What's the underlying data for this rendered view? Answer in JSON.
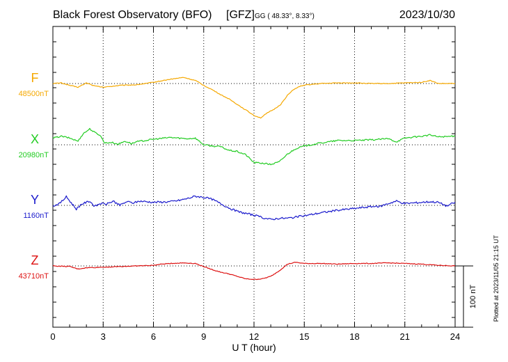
{
  "header": {
    "title": "Black Forest Observatory (BFO)",
    "agency": "[GFZ]",
    "coords": "GG ( 48.33°,   8.33°)",
    "date": "2023/10/30"
  },
  "side_note": "Plotted at 2023/11/05 21:15 UT",
  "scale_bar": {
    "label": "100 nT",
    "value": 100,
    "unit": "nT"
  },
  "chart_data": {
    "type": "line",
    "xlabel": "U T (hour)",
    "xlim": [
      0,
      24
    ],
    "x_ticks": [
      "0",
      "3",
      "6",
      "9",
      "12",
      "15",
      "18",
      "21",
      "24"
    ],
    "grid": true,
    "series": [
      {
        "name": "F",
        "baseline_label": "48500nT",
        "baseline": 48500,
        "color": "#f5a800",
        "x": [
          0,
          0.5,
          1,
          1.5,
          2,
          2.5,
          3,
          4,
          5,
          6,
          7,
          7.8,
          8.5,
          9,
          9.5,
          10,
          10.5,
          11,
          11.5,
          12,
          12.4,
          12.8,
          13.2,
          13.6,
          14,
          14.4,
          14.8,
          15.2,
          16,
          17,
          18,
          19,
          20,
          21,
          22,
          22.5,
          23,
          24
        ],
        "values": [
          48500,
          48501,
          48497,
          48494,
          48501,
          48496,
          48494,
          48497,
          48498,
          48502,
          48507,
          48510,
          48505,
          48497,
          48490,
          48482,
          48475,
          48466,
          48457,
          48448,
          48444,
          48452,
          48458,
          48466,
          48481,
          48491,
          48496,
          48498,
          48500,
          48501,
          48501,
          48500,
          48500,
          48501,
          48502,
          48505,
          48500,
          48500
        ]
      },
      {
        "name": "X",
        "baseline_label": "20980nT",
        "baseline": 20980,
        "color": "#22cc22",
        "x": [
          0,
          0.5,
          1,
          1.5,
          1.8,
          2.2,
          2.5,
          2.8,
          3.1,
          3.5,
          3.9,
          4.3,
          4.7,
          5,
          6,
          7,
          8,
          8.5,
          9,
          9.5,
          10,
          10.5,
          11,
          11.5,
          12,
          12.5,
          13,
          13.5,
          14,
          14.5,
          15,
          16,
          17,
          18,
          19,
          20,
          20.5,
          21,
          22,
          22.5,
          23,
          24
        ],
        "values": [
          20991,
          20994,
          20991,
          20986,
          20998,
          21006,
          21000,
          20996,
          20983,
          20984,
          20981,
          20986,
          20982,
          20985,
          20989,
          20992,
          20990,
          20991,
          20980,
          20978,
          20977,
          20971,
          20969,
          20964,
          20951,
          20950,
          20948,
          20952,
          20965,
          20974,
          20978,
          20983,
          20987,
          20987,
          20988,
          20990,
          20985,
          20991,
          20994,
          20996,
          20993,
          20994
        ]
      },
      {
        "name": "Y",
        "baseline_label": "1160nT",
        "baseline": 1160,
        "color": "#1a1acc",
        "x": [
          0,
          0.4,
          0.8,
          1.1,
          1.4,
          1.7,
          2.2,
          2.5,
          2.8,
          3.2,
          3.6,
          4,
          4.4,
          4.8,
          5.2,
          6,
          7,
          7.5,
          8,
          8.5,
          9,
          9.5,
          10,
          10.5,
          11,
          11.5,
          12,
          12.5,
          13,
          13.5,
          14,
          14.5,
          15,
          16,
          17,
          18,
          19,
          19.5,
          20,
          20.5,
          21,
          21.5,
          22,
          22.5,
          23,
          23.5,
          24
        ],
        "values": [
          1159,
          1163,
          1174,
          1164,
          1154,
          1162,
          1167,
          1158,
          1163,
          1162,
          1167,
          1160,
          1166,
          1164,
          1167,
          1165,
          1166,
          1168,
          1171,
          1175,
          1173,
          1170,
          1163,
          1156,
          1150,
          1147,
          1144,
          1140,
          1137,
          1139,
          1139,
          1141,
          1143,
          1148,
          1152,
          1155,
          1158,
          1158,
          1163,
          1167,
          1163,
          1164,
          1165,
          1166,
          1165,
          1159,
          1165
        ]
      },
      {
        "name": "Z",
        "baseline_label": "43710nT",
        "baseline": 43710,
        "color": "#dd1111",
        "x": [
          0,
          1,
          1.5,
          2,
          3,
          4,
          5,
          6,
          6.5,
          7,
          7.8,
          8.5,
          9,
          9.5,
          10,
          10.5,
          11,
          11.5,
          12,
          12.5,
          13,
          13.5,
          14,
          14.5,
          15,
          16,
          17,
          18,
          19,
          20,
          21,
          22,
          23,
          24
        ],
        "values": [
          43710,
          43709,
          43705,
          43707,
          43708,
          43709,
          43710,
          43711,
          43713,
          43714,
          43715,
          43714,
          43709,
          43704,
          43700,
          43697,
          43693,
          43689,
          43688,
          43689,
          43693,
          43702,
          43713,
          43716,
          43714,
          43714,
          43713,
          43714,
          43714,
          43715,
          43714,
          43713,
          43711,
          43710
        ]
      }
    ]
  }
}
